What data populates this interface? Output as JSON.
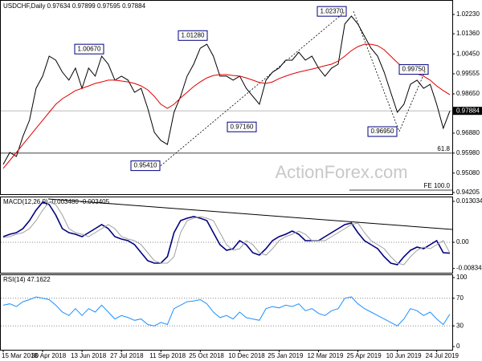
{
  "chart_data": [
    {
      "type": "line",
      "title": "USDCHF,Daily 0.97634 0.97899 0.97595 0.97884",
      "ylim": [
        0.9413,
        1.0281
      ],
      "yticks": [
        {
          "value": 1.0223,
          "label": "1.02230"
        },
        {
          "value": 1.0136,
          "label": "1.01360"
        },
        {
          "value": 1.0045,
          "label": "1.00450"
        },
        {
          "value": 0.99555,
          "label": "0.99555"
        },
        {
          "value": 0.9865,
          "label": "0.98650"
        },
        {
          "value": 0.9688,
          "label": "0.96880"
        },
        {
          "value": 0.9598,
          "label": "0.95980"
        },
        {
          "value": 0.9508,
          "label": "0.95080"
        },
        {
          "value": 0.94205,
          "label": "0.94205"
        }
      ],
      "current": {
        "value": 0.97884,
        "label": "0.97884"
      },
      "series": [
        {
          "color": "#000000",
          "values": [
            0.9547,
            0.9601,
            0.9583,
            0.9673,
            0.9746,
            0.989,
            0.9945,
            1.0035,
            1.0017,
            0.9963,
            0.9927,
            0.9981,
            0.989,
            0.9981,
            0.9945,
            1.0035,
            0.9999,
            0.9927,
            0.9945,
            0.9927,
            0.9872,
            0.989,
            0.98,
            0.9692,
            0.9655,
            0.9637,
            0.9782,
            0.9854,
            0.9945,
            0.9999,
            1.0071,
            1.0089,
            1.0035,
            0.9945,
            0.9945,
            0.9927,
            0.9945,
            0.989,
            0.9854,
            0.9818,
            0.9927,
            0.9963,
            0.9981,
            1.0017,
            1.0017,
            1.0053,
            1.0017,
            1.0035,
            0.9981,
            0.9945,
            0.9981,
            0.9999,
            1.018,
            1.0216,
            1.018,
            1.0125,
            1.0071,
            1.0035,
            0.9963,
            0.9872,
            0.9782,
            0.9818,
            0.9908,
            0.9927,
            0.989,
            0.9908,
            0.9818,
            0.971,
            0.9788
          ]
        },
        {
          "color": "#e00000",
          "values": [
            0.9529,
            0.9565,
            0.9601,
            0.9637,
            0.9673,
            0.971,
            0.9746,
            0.9782,
            0.9818,
            0.9843,
            0.9861,
            0.988,
            0.989,
            0.9901,
            0.9912,
            0.9919,
            0.9927,
            0.9927,
            0.9923,
            0.9919,
            0.9912,
            0.9901,
            0.9883,
            0.9854,
            0.9818,
            0.98,
            0.9818,
            0.9847,
            0.9872,
            0.9898,
            0.9919,
            0.9937,
            0.9948,
            0.9952,
            0.9952,
            0.9948,
            0.9945,
            0.9937,
            0.9927,
            0.9916,
            0.9912,
            0.9919,
            0.9934,
            0.9945,
            0.9955,
            0.9963,
            0.997,
            0.9977,
            0.9984,
            0.9992,
            0.9999,
            1.0013,
            1.0035,
            1.006,
            1.0078,
            1.0089,
            1.0089,
            1.0082,
            1.0064,
            1.0035,
            1.0006,
            0.9981,
            0.997,
            0.9955,
            0.9945,
            0.9927,
            0.9901,
            0.988,
            0.9861
          ]
        }
      ],
      "annotations": [
        {
          "value": 1.0237,
          "label": "1.02370"
        },
        {
          "value": 1.0067,
          "label": "1.00670"
        },
        {
          "value": 1.0128,
          "label": "1.01280"
        },
        {
          "value": 0.9975,
          "label": "0.99750"
        },
        {
          "value": 0.9716,
          "label": "0.97160"
        },
        {
          "value": 0.9695,
          "label": "0.96950"
        },
        {
          "value": 0.9541,
          "label": "0.95410"
        }
      ],
      "levels": [
        {
          "value": 0.9598,
          "label": "61.8"
        },
        {
          "value": 0.9431,
          "label": "FE 100.0"
        }
      ],
      "watermark": "ActionForex.com"
    },
    {
      "type": "line",
      "title": "MACD(12,26,9) -0.003480 -0.003405",
      "ylim": [
        -0.00971,
        0.01431
      ],
      "yticks": [
        0.013034,
        {
          "value": 0,
          "label": "0.00"
        },
        -0.00834
      ],
      "hlines": [
        0
      ],
      "series": [
        {
          "color": "#000080",
          "values": [
            0.00179,
            0.00256,
            0.00307,
            0.00434,
            0.0069,
            0.01022,
            0.01278,
            0.01201,
            0.00869,
            0.00434,
            0.00307,
            0.00256,
            0.00179,
            0.00307,
            0.00434,
            0.00562,
            0.00434,
            0.00179,
            0.00102,
            0.00051,
            -0.00077,
            -0.00332,
            -0.00588,
            -0.00664,
            -0.00664,
            -0.0046,
            0.00307,
            0.0069,
            0.00767,
            0.00818,
            0.00767,
            0.0069,
            0.00307,
            -0.00077,
            -0.00256,
            -0.00204,
            0.00051,
            -0.00077,
            -0.00332,
            -0.00409,
            -0.00204,
            0.00051,
            0.00179,
            0.00256,
            0.00358,
            0.00256,
            0.00051,
            0.00051,
            0.00051,
            0.00179,
            0.00307,
            0.00434,
            0.00562,
            0.00613,
            0.00307,
            0.00051,
            -0.00077,
            -0.00204,
            -0.0046,
            -0.00664,
            -0.00716,
            -0.0046,
            -0.00256,
            -0.00153,
            -0.00204,
            -0.00077,
            0.00051,
            -0.00332,
            -0.00348
          ]
        },
        {
          "color": "#a0a0a0",
          "values": [
            0.0015,
            0.00179,
            0.00256,
            0.00307,
            0.00434,
            0.0069,
            0.01022,
            0.01278,
            0.01201,
            0.00869,
            0.00434,
            0.00307,
            0.00256,
            0.00179,
            0.00307,
            0.00434,
            0.00562,
            0.00434,
            0.00179,
            0.00102,
            0.00051,
            -0.00077,
            -0.00332,
            -0.00588,
            -0.00664,
            -0.00664,
            -0.0046,
            0.00307,
            0.0069,
            0.00767,
            0.00818,
            0.00767,
            0.0069,
            0.00307,
            -0.00077,
            -0.00256,
            -0.00204,
            0.00051,
            -0.00077,
            -0.00332,
            -0.00409,
            -0.00204,
            0.00051,
            0.00179,
            0.00256,
            0.00358,
            0.00256,
            0.00051,
            0.00051,
            0.00051,
            0.00179,
            0.00307,
            0.00434,
            0.00562,
            0.00613,
            0.00307,
            0.00051,
            -0.00077,
            -0.00204,
            -0.0046,
            -0.00664,
            -0.00716,
            -0.0046,
            -0.00256,
            -0.00153,
            -0.00204,
            -0.00077,
            0.00051,
            -0.00341
          ]
        }
      ]
    },
    {
      "type": "line",
      "title": "RSI(14) 47.1622",
      "ylim": [
        0,
        100
      ],
      "yticks": [
        100,
        70,
        30,
        0
      ],
      "hlines": [
        70,
        30
      ],
      "categories": [
        "15 Mar 2018",
        null,
        null,
        null,
        null,
        null,
        "30 Apr 2018",
        null,
        null,
        null,
        null,
        null,
        "13 Jun 2018",
        null,
        null,
        null,
        null,
        null,
        "27 Jul 2018",
        null,
        null,
        null,
        null,
        null,
        "11 Sep 2018",
        null,
        null,
        null,
        null,
        null,
        "25 Oct 2018",
        null,
        null,
        null,
        null,
        null,
        "10 Dec 2018",
        null,
        null,
        null,
        null,
        null,
        "25 Jan 2019",
        null,
        null,
        null,
        null,
        null,
        "12 Mar 2019",
        null,
        null,
        null,
        null,
        null,
        "25 Apr 2019",
        null,
        null,
        null,
        null,
        null,
        "10 Jun 2019",
        null,
        null,
        null,
        null,
        null,
        "24 Jul 2019",
        null,
        null
      ],
      "series": [
        {
          "color": "#1e90ff",
          "values": [
            60,
            62,
            58,
            65,
            68,
            72,
            70,
            68,
            60,
            50,
            45,
            55,
            45,
            55,
            50,
            60,
            50,
            40,
            45,
            42,
            38,
            40,
            32,
            30,
            35,
            32,
            55,
            60,
            65,
            66,
            68,
            62,
            50,
            42,
            45,
            40,
            50,
            42,
            40,
            38,
            55,
            58,
            56,
            60,
            58,
            62,
            52,
            55,
            48,
            45,
            52,
            55,
            70,
            72,
            62,
            55,
            50,
            45,
            40,
            35,
            30,
            40,
            55,
            52,
            45,
            50,
            40,
            32,
            47
          ]
        }
      ]
    }
  ]
}
